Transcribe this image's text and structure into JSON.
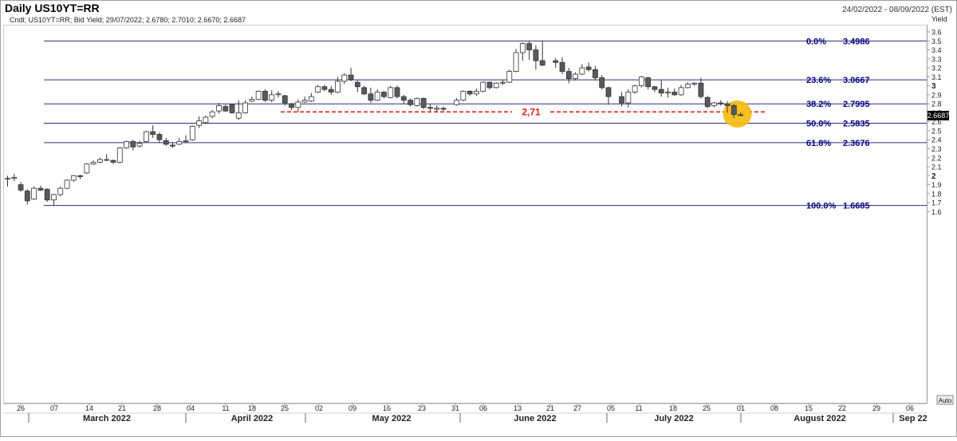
{
  "header": {
    "title": "Daily US10YT=RR",
    "date_range": "24/02/2022 - 08/09/2022 (EST)",
    "legend": "Cndl; US10YT=RR; Bid Yield; 29/07/2022; 2.6780; 2.7010; 2.6670; 2.6687"
  },
  "chart_data": {
    "type": "candlestick",
    "instrument": "US10YT=RR",
    "y_axis_label": "Yield",
    "ylim": [
      1.55,
      3.66
    ],
    "y_ticks": [
      "1.6",
      "1.7",
      "1.8",
      "1.9",
      "2",
      "2.1",
      "2.2",
      "2.3",
      "2.4",
      "2.5",
      "2.6",
      "2.7",
      "2.8",
      "2.9",
      "3",
      "3.1",
      "3.2",
      "3.3",
      "3.4",
      "3.5",
      "3.6"
    ],
    "y_major_ticks": [
      "2",
      "3"
    ],
    "last_price": "2.6687",
    "auto_label": "Auto",
    "colors": {
      "fib_line": "#2d2d7a",
      "fib_label": "#000080",
      "support": "#e02020",
      "highlight": "#f5bd17",
      "down_candle": "#5a5a5a"
    },
    "x_day_ticks": [
      "26",
      "07",
      "14",
      "21",
      "28",
      "04",
      "11",
      "18",
      "25",
      "02",
      "09",
      "16",
      "23",
      "31",
      "06",
      "13",
      "21",
      "27",
      "05",
      "11",
      "18",
      "25",
      "01",
      "08",
      "15",
      "22",
      "29",
      "06"
    ],
    "x_month_labels": [
      "March 2022",
      "April 2022",
      "May 2022",
      "June 2022",
      "July 2022",
      "August 2022",
      "Sep 22"
    ],
    "fibonacci": [
      {
        "pct": "0.0%",
        "value": "3.4986",
        "y": 3.4986
      },
      {
        "pct": "23.6%",
        "value": "3.0667",
        "y": 3.0667
      },
      {
        "pct": "38.2%",
        "value": "2.7995",
        "y": 2.7995
      },
      {
        "pct": "50.0%",
        "value": "2.5835",
        "y": 2.5835
      },
      {
        "pct": "61.8%",
        "value": "2.3676",
        "y": 2.3676
      },
      {
        "pct": "100.0%",
        "value": "1.6685",
        "y": 1.6685
      }
    ],
    "support_level": {
      "label": "2,71",
      "value": 2.71
    },
    "candles": [
      {
        "date": "2022-02-24",
        "o": 1.97,
        "h": 2.0,
        "l": 1.88,
        "c": 1.97
      },
      {
        "date": "2022-02-25",
        "o": 1.97,
        "h": 2.02,
        "l": 1.94,
        "c": 1.98
      },
      {
        "date": "2022-02-28",
        "o": 1.9,
        "h": 1.93,
        "l": 1.82,
        "c": 1.84
      },
      {
        "date": "2022-03-01",
        "o": 1.83,
        "h": 1.85,
        "l": 1.68,
        "c": 1.72
      },
      {
        "date": "2022-03-02",
        "o": 1.74,
        "h": 1.88,
        "l": 1.73,
        "c": 1.86
      },
      {
        "date": "2022-03-03",
        "o": 1.86,
        "h": 1.89,
        "l": 1.83,
        "c": 1.84
      },
      {
        "date": "2022-03-04",
        "o": 1.85,
        "h": 1.86,
        "l": 1.71,
        "c": 1.73
      },
      {
        "date": "2022-03-07",
        "o": 1.73,
        "h": 1.8,
        "l": 1.67,
        "c": 1.79
      },
      {
        "date": "2022-03-08",
        "o": 1.79,
        "h": 1.88,
        "l": 1.77,
        "c": 1.86
      },
      {
        "date": "2022-03-09",
        "o": 1.86,
        "h": 1.96,
        "l": 1.85,
        "c": 1.95
      },
      {
        "date": "2022-03-10",
        "o": 1.95,
        "h": 2.01,
        "l": 1.93,
        "c": 2.0
      },
      {
        "date": "2022-03-11",
        "o": 2.0,
        "h": 2.01,
        "l": 1.96,
        "c": 1.99
      },
      {
        "date": "2022-03-14",
        "o": 2.03,
        "h": 2.14,
        "l": 2.02,
        "c": 2.13
      },
      {
        "date": "2022-03-15",
        "o": 2.13,
        "h": 2.17,
        "l": 2.12,
        "c": 2.15
      },
      {
        "date": "2022-03-16",
        "o": 2.15,
        "h": 2.2,
        "l": 2.14,
        "c": 2.18
      },
      {
        "date": "2022-03-17",
        "o": 2.18,
        "h": 2.24,
        "l": 2.16,
        "c": 2.18
      },
      {
        "date": "2022-03-18",
        "o": 2.17,
        "h": 2.18,
        "l": 2.13,
        "c": 2.15
      },
      {
        "date": "2022-03-21",
        "o": 2.15,
        "h": 2.32,
        "l": 2.14,
        "c": 2.31
      },
      {
        "date": "2022-03-22",
        "o": 2.31,
        "h": 2.39,
        "l": 2.3,
        "c": 2.38
      },
      {
        "date": "2022-03-23",
        "o": 2.38,
        "h": 2.4,
        "l": 2.28,
        "c": 2.32
      },
      {
        "date": "2022-03-24",
        "o": 2.33,
        "h": 2.39,
        "l": 2.31,
        "c": 2.36
      },
      {
        "date": "2022-03-25",
        "o": 2.38,
        "h": 2.5,
        "l": 2.37,
        "c": 2.49
      },
      {
        "date": "2022-03-28",
        "o": 2.49,
        "h": 2.56,
        "l": 2.42,
        "c": 2.46
      },
      {
        "date": "2022-03-29",
        "o": 2.46,
        "h": 2.48,
        "l": 2.37,
        "c": 2.4
      },
      {
        "date": "2022-03-30",
        "o": 2.39,
        "h": 2.42,
        "l": 2.33,
        "c": 2.35
      },
      {
        "date": "2022-03-31",
        "o": 2.34,
        "h": 2.37,
        "l": 2.31,
        "c": 2.33
      },
      {
        "date": "2022-04-01",
        "o": 2.35,
        "h": 2.42,
        "l": 2.34,
        "c": 2.38
      },
      {
        "date": "2022-04-04",
        "o": 2.38,
        "h": 2.45,
        "l": 2.36,
        "c": 2.39
      },
      {
        "date": "2022-04-05",
        "o": 2.4,
        "h": 2.56,
        "l": 2.39,
        "c": 2.55
      },
      {
        "date": "2022-04-06",
        "o": 2.56,
        "h": 2.66,
        "l": 2.53,
        "c": 2.61
      },
      {
        "date": "2022-04-07",
        "o": 2.59,
        "h": 2.67,
        "l": 2.57,
        "c": 2.65
      },
      {
        "date": "2022-04-08",
        "o": 2.66,
        "h": 2.73,
        "l": 2.64,
        "c": 2.71
      },
      {
        "date": "2022-04-11",
        "o": 2.72,
        "h": 2.81,
        "l": 2.69,
        "c": 2.78
      },
      {
        "date": "2022-04-12",
        "o": 2.77,
        "h": 2.79,
        "l": 2.71,
        "c": 2.72
      },
      {
        "date": "2022-04-13",
        "o": 2.79,
        "h": 2.8,
        "l": 2.69,
        "c": 2.7
      },
      {
        "date": "2022-04-14",
        "o": 2.64,
        "h": 2.84,
        "l": 2.62,
        "c": 2.7
      },
      {
        "date": "2022-04-15",
        "o": 2.7,
        "h": 2.84,
        "l": 2.69,
        "c": 2.81
      },
      {
        "date": "2022-04-18",
        "o": 2.83,
        "h": 2.88,
        "l": 2.82,
        "c": 2.85
      },
      {
        "date": "2022-04-19",
        "o": 2.85,
        "h": 2.95,
        "l": 2.84,
        "c": 2.94
      },
      {
        "date": "2022-04-20",
        "o": 2.94,
        "h": 2.96,
        "l": 2.82,
        "c": 2.84
      },
      {
        "date": "2022-04-21",
        "o": 2.84,
        "h": 2.95,
        "l": 2.82,
        "c": 2.9
      },
      {
        "date": "2022-04-22",
        "o": 2.91,
        "h": 2.94,
        "l": 2.87,
        "c": 2.91
      },
      {
        "date": "2022-04-25",
        "o": 2.89,
        "h": 2.9,
        "l": 2.78,
        "c": 2.81
      },
      {
        "date": "2022-04-26",
        "o": 2.8,
        "h": 2.81,
        "l": 2.73,
        "c": 2.76
      },
      {
        "date": "2022-04-27",
        "o": 2.76,
        "h": 2.85,
        "l": 2.71,
        "c": 2.82
      },
      {
        "date": "2022-04-28",
        "o": 2.82,
        "h": 2.88,
        "l": 2.81,
        "c": 2.84
      },
      {
        "date": "2022-04-29",
        "o": 2.83,
        "h": 2.92,
        "l": 2.82,
        "c": 2.88
      },
      {
        "date": "2022-05-02",
        "o": 2.93,
        "h": 3.01,
        "l": 2.92,
        "c": 2.99
      },
      {
        "date": "2022-05-03",
        "o": 2.99,
        "h": 3.01,
        "l": 2.94,
        "c": 2.96
      },
      {
        "date": "2022-05-04",
        "o": 2.96,
        "h": 3.0,
        "l": 2.9,
        "c": 2.93
      },
      {
        "date": "2022-05-05",
        "o": 2.93,
        "h": 3.1,
        "l": 2.92,
        "c": 3.05
      },
      {
        "date": "2022-05-06",
        "o": 3.05,
        "h": 3.14,
        "l": 3.02,
        "c": 3.12
      },
      {
        "date": "2022-05-09",
        "o": 3.12,
        "h": 3.2,
        "l": 3.05,
        "c": 3.07
      },
      {
        "date": "2022-05-10",
        "o": 3.04,
        "h": 3.06,
        "l": 2.93,
        "c": 2.99
      },
      {
        "date": "2022-05-11",
        "o": 2.98,
        "h": 3.0,
        "l": 2.9,
        "c": 2.91
      },
      {
        "date": "2022-05-12",
        "o": 2.91,
        "h": 2.98,
        "l": 2.81,
        "c": 2.84
      },
      {
        "date": "2022-05-13",
        "o": 2.84,
        "h": 2.96,
        "l": 2.83,
        "c": 2.93
      },
      {
        "date": "2022-05-16",
        "o": 2.93,
        "h": 2.94,
        "l": 2.86,
        "c": 2.88
      },
      {
        "date": "2022-05-17",
        "o": 2.87,
        "h": 3.0,
        "l": 2.86,
        "c": 2.98
      },
      {
        "date": "2022-05-18",
        "o": 2.98,
        "h": 3.0,
        "l": 2.86,
        "c": 2.88
      },
      {
        "date": "2022-05-19",
        "o": 2.88,
        "h": 2.9,
        "l": 2.8,
        "c": 2.84
      },
      {
        "date": "2022-05-20",
        "o": 2.84,
        "h": 2.86,
        "l": 2.77,
        "c": 2.79
      },
      {
        "date": "2022-05-23",
        "o": 2.78,
        "h": 2.87,
        "l": 2.77,
        "c": 2.86
      },
      {
        "date": "2022-05-24",
        "o": 2.86,
        "h": 2.87,
        "l": 2.74,
        "c": 2.76
      },
      {
        "date": "2022-05-25",
        "o": 2.76,
        "h": 2.8,
        "l": 2.72,
        "c": 2.75
      },
      {
        "date": "2022-05-26",
        "o": 2.74,
        "h": 2.78,
        "l": 2.71,
        "c": 2.75
      },
      {
        "date": "2022-05-27",
        "o": 2.75,
        "h": 2.77,
        "l": 2.72,
        "c": 2.74
      },
      {
        "date": "2022-05-31",
        "o": 2.79,
        "h": 2.86,
        "l": 2.78,
        "c": 2.84
      },
      {
        "date": "2022-06-01",
        "o": 2.84,
        "h": 2.95,
        "l": 2.83,
        "c": 2.94
      },
      {
        "date": "2022-06-02",
        "o": 2.94,
        "h": 2.95,
        "l": 2.89,
        "c": 2.91
      },
      {
        "date": "2022-06-03",
        "o": 2.91,
        "h": 2.97,
        "l": 2.89,
        "c": 2.94
      },
      {
        "date": "2022-06-06",
        "o": 2.94,
        "h": 3.05,
        "l": 2.93,
        "c": 3.04
      },
      {
        "date": "2022-06-07",
        "o": 3.04,
        "h": 3.05,
        "l": 2.96,
        "c": 2.98
      },
      {
        "date": "2022-06-08",
        "o": 2.98,
        "h": 3.04,
        "l": 2.97,
        "c": 3.03
      },
      {
        "date": "2022-06-09",
        "o": 3.03,
        "h": 3.06,
        "l": 3.01,
        "c": 3.04
      },
      {
        "date": "2022-06-10",
        "o": 3.04,
        "h": 3.18,
        "l": 3.03,
        "c": 3.16
      },
      {
        "date": "2022-06-13",
        "o": 3.16,
        "h": 3.41,
        "l": 3.15,
        "c": 3.37
      },
      {
        "date": "2022-06-14",
        "o": 3.37,
        "h": 3.48,
        "l": 3.28,
        "c": 3.47
      },
      {
        "date": "2022-06-15",
        "o": 3.47,
        "h": 3.5,
        "l": 3.29,
        "c": 3.4
      },
      {
        "date": "2022-06-16",
        "o": 3.4,
        "h": 3.45,
        "l": 3.18,
        "c": 3.28
      },
      {
        "date": "2022-06-17",
        "o": 3.28,
        "h": 3.5,
        "l": 3.22,
        "c": 3.23
      },
      {
        "date": "2022-06-21",
        "o": 3.28,
        "h": 3.31,
        "l": 3.2,
        "c": 3.26
      },
      {
        "date": "2022-06-22",
        "o": 3.26,
        "h": 3.32,
        "l": 3.13,
        "c": 3.16
      },
      {
        "date": "2022-06-23",
        "o": 3.16,
        "h": 3.2,
        "l": 3.03,
        "c": 3.08
      },
      {
        "date": "2022-06-24",
        "o": 3.08,
        "h": 3.15,
        "l": 3.06,
        "c": 3.13
      },
      {
        "date": "2022-06-27",
        "o": 3.13,
        "h": 3.24,
        "l": 3.12,
        "c": 3.2
      },
      {
        "date": "2022-06-28",
        "o": 3.21,
        "h": 3.26,
        "l": 3.16,
        "c": 3.18
      },
      {
        "date": "2022-06-29",
        "o": 3.18,
        "h": 3.22,
        "l": 3.06,
        "c": 3.09
      },
      {
        "date": "2022-06-30",
        "o": 3.09,
        "h": 3.12,
        "l": 2.96,
        "c": 2.98
      },
      {
        "date": "2022-07-01",
        "o": 2.98,
        "h": 2.99,
        "l": 2.79,
        "c": 2.88
      },
      {
        "date": "2022-07-05",
        "o": 2.88,
        "h": 2.93,
        "l": 2.77,
        "c": 2.81
      },
      {
        "date": "2022-07-06",
        "o": 2.81,
        "h": 2.96,
        "l": 2.76,
        "c": 2.93
      },
      {
        "date": "2022-07-07",
        "o": 2.93,
        "h": 3.01,
        "l": 2.91,
        "c": 3.0
      },
      {
        "date": "2022-07-08",
        "o": 3.0,
        "h": 3.11,
        "l": 2.98,
        "c": 3.1
      },
      {
        "date": "2022-07-11",
        "o": 3.09,
        "h": 3.1,
        "l": 2.96,
        "c": 2.99
      },
      {
        "date": "2022-07-12",
        "o": 2.99,
        "h": 3.0,
        "l": 2.93,
        "c": 2.96
      },
      {
        "date": "2022-07-13",
        "o": 2.96,
        "h": 3.07,
        "l": 2.88,
        "c": 2.92
      },
      {
        "date": "2022-07-14",
        "o": 2.92,
        "h": 2.98,
        "l": 2.87,
        "c": 2.93
      },
      {
        "date": "2022-07-15",
        "o": 2.93,
        "h": 2.97,
        "l": 2.89,
        "c": 2.9
      },
      {
        "date": "2022-07-18",
        "o": 2.9,
        "h": 3.01,
        "l": 2.89,
        "c": 2.98
      },
      {
        "date": "2022-07-19",
        "o": 2.98,
        "h": 3.04,
        "l": 2.97,
        "c": 3.02
      },
      {
        "date": "2022-07-20",
        "o": 3.02,
        "h": 3.04,
        "l": 3.0,
        "c": 3.03
      },
      {
        "date": "2022-07-21",
        "o": 3.03,
        "h": 3.09,
        "l": 2.86,
        "c": 2.88
      },
      {
        "date": "2022-07-22",
        "o": 2.87,
        "h": 2.89,
        "l": 2.75,
        "c": 2.77
      },
      {
        "date": "2022-07-25",
        "o": 2.78,
        "h": 2.82,
        "l": 2.76,
        "c": 2.81
      },
      {
        "date": "2022-07-26",
        "o": 2.81,
        "h": 2.84,
        "l": 2.78,
        "c": 2.8
      },
      {
        "date": "2022-07-27",
        "o": 2.8,
        "h": 2.83,
        "l": 2.7,
        "c": 2.78
      },
      {
        "date": "2022-07-28",
        "o": 2.78,
        "h": 2.8,
        "l": 2.64,
        "c": 2.68
      },
      {
        "date": "2022-07-29",
        "o": 2.678,
        "h": 2.701,
        "l": 2.667,
        "c": 2.6687
      }
    ]
  }
}
